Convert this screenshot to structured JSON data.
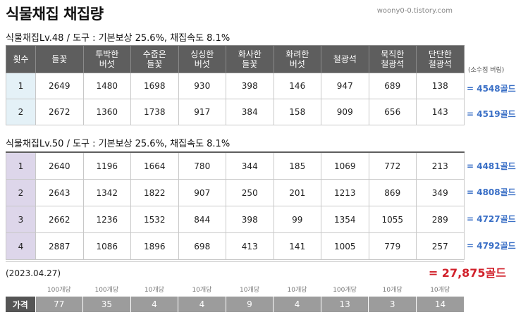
{
  "title": "식물채집  채집량",
  "source": "woony0-0.tistory.com",
  "headers": [
    "횟수",
    "들꽃",
    "투박한\n버섯",
    "수줍은\n들꽃",
    "싱싱한\n버섯",
    "화사한\n들꽃",
    "화려한\n버섯",
    "철광석",
    "묵직한\n철광석",
    "단단한\n철광석"
  ],
  "note": "(소수점 버림)",
  "section1": {
    "title": "식물채집Lv.48 / 도구 : 기본보상 25.6%, 채집속도 8.1%",
    "rows": [
      {
        "count": "1",
        "values": [
          "2649",
          "1480",
          "1698",
          "930",
          "398",
          "146",
          "947",
          "689",
          "138"
        ],
        "total": "= 4548골드"
      },
      {
        "count": "2",
        "values": [
          "2672",
          "1360",
          "1738",
          "917",
          "384",
          "158",
          "909",
          "656",
          "143"
        ],
        "total": "= 4519골드"
      }
    ]
  },
  "section2": {
    "title": "식물채집Lv.50 / 도구 : 기본보상 25.6%, 채집속도 8.1%",
    "rows": [
      {
        "count": "1",
        "values": [
          "2640",
          "1196",
          "1664",
          "780",
          "344",
          "185",
          "1069",
          "772",
          "213"
        ],
        "total": "= 4481골드"
      },
      {
        "count": "2",
        "values": [
          "2643",
          "1342",
          "1822",
          "907",
          "250",
          "201",
          "1213",
          "869",
          "349"
        ],
        "total": "= 4808골드"
      },
      {
        "count": "3",
        "values": [
          "2662",
          "1236",
          "1532",
          "844",
          "398",
          "99",
          "1354",
          "1055",
          "289"
        ],
        "total": "= 4727골드"
      },
      {
        "count": "4",
        "values": [
          "2887",
          "1086",
          "1896",
          "698",
          "413",
          "141",
          "1005",
          "779",
          "257"
        ],
        "total": "= 4792골드"
      }
    ]
  },
  "date": "(2023.04.27)",
  "grand_total": "= 27,875골드",
  "price": {
    "label": "가격",
    "units": [
      "100개당",
      "100개당",
      "10개당",
      "10개당",
      "10개당",
      "10개당",
      "100개당",
      "10개당",
      "10개당"
    ],
    "values": [
      "77",
      "35",
      "4",
      "4",
      "9",
      "4",
      "13",
      "3",
      "14"
    ]
  },
  "colors": {
    "header_bg": "#5e5e5e",
    "count_cell_sec1": "#e4f1f7",
    "count_cell_sec2": "#ddd6ea",
    "total_blue": "#3a6fc6",
    "grand_total_red": "#d1202a",
    "price_bg": "#9c9c9c"
  }
}
